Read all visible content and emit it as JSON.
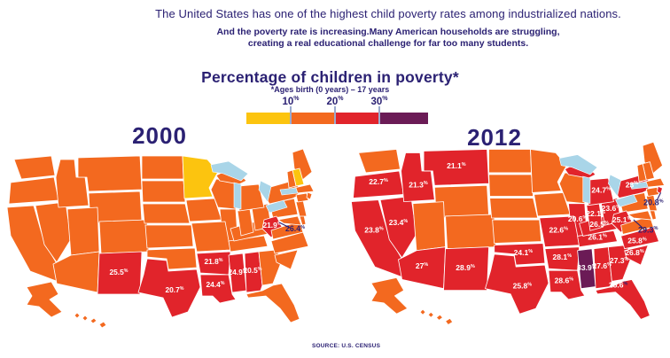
{
  "header": {
    "line1": "The United States has one of the highest child poverty rates among industrialized nations.",
    "line2": "And the poverty rate is increasing.Many American households are struggling,",
    "line3": "creating a real educational challenge for far too many students."
  },
  "legend": {
    "title": "Percentage of children in poverty*",
    "note": "*Ages birth (0 years) – 17 years",
    "ticks": [
      "10",
      "20",
      "30"
    ],
    "unit": "%",
    "colors": {
      "yellow": "#fcc40f",
      "orange": "#f3691f",
      "red": "#e1242b",
      "purple": "#6b1b56"
    },
    "lake_color": "#a9d5e8",
    "border_color": "#ffffff",
    "tick_color": "#9aaace"
  },
  "text_color": "#2b2173",
  "source": "SOURCE: U.S. CENSUS",
  "maps": [
    {
      "year": "2000",
      "default_color": "orange",
      "state_colors": {
        "MN": "yellow",
        "NH": "yellow",
        "NM": "red",
        "TX": "red",
        "AR": "red",
        "LA": "red",
        "MS": "red",
        "AL": "red",
        "WV": "red"
      },
      "labels": [
        {
          "state": "NM",
          "value": "25.5"
        },
        {
          "state": "TX",
          "value": "20.7"
        },
        {
          "state": "AR",
          "value": "21.8"
        },
        {
          "state": "LA",
          "value": "24.4"
        },
        {
          "state": "MS",
          "value": "24.9"
        },
        {
          "state": "AL",
          "value": "20.5"
        },
        {
          "state": "WV",
          "value": "21.9"
        }
      ],
      "callouts": [
        {
          "name": "DC",
          "value": "26.4"
        }
      ]
    },
    {
      "year": "2012",
      "default_color": "orange",
      "state_colors": {
        "OR": "red",
        "MT": "red",
        "ID": "red",
        "NV": "red",
        "CA": "red",
        "AZ": "red",
        "NM": "red",
        "OK": "red",
        "TX": "red",
        "MO": "red",
        "AR": "red",
        "LA": "red",
        "MS": "purple",
        "AL": "red",
        "GA": "red",
        "FL": "red",
        "TN": "red",
        "KY": "red",
        "IL": "red",
        "IN": "red",
        "OH": "red",
        "MI": "red",
        "WV": "red",
        "NY": "red",
        "NC": "red",
        "SC": "red",
        "RI": "red"
      },
      "labels": [
        {
          "state": "OR",
          "value": "22.7"
        },
        {
          "state": "MT",
          "value": "21.1"
        },
        {
          "state": "ID",
          "value": "21.3"
        },
        {
          "state": "NV",
          "value": "23.4"
        },
        {
          "state": "CA",
          "value": "23.8"
        },
        {
          "state": "AZ",
          "value": "27"
        },
        {
          "state": "NM",
          "value": "28.9"
        },
        {
          "state": "OK",
          "value": "24.1"
        },
        {
          "state": "TX",
          "value": "25.8"
        },
        {
          "state": "MO",
          "value": "22.6"
        },
        {
          "state": "AR",
          "value": "28.1"
        },
        {
          "state": "LA",
          "value": "28.6"
        },
        {
          "state": "MS",
          "value": "33.9"
        },
        {
          "state": "AL",
          "value": "27.6"
        },
        {
          "state": "GA",
          "value": "27.3"
        },
        {
          "state": "FL",
          "value": "25.6",
          "pct_navy": true
        },
        {
          "state": "TN",
          "value": "26.1"
        },
        {
          "state": "KY",
          "value": "26.5"
        },
        {
          "state": "IL",
          "value": "20.6"
        },
        {
          "state": "IN",
          "value": "22.1"
        },
        {
          "state": "OH",
          "value": "23.6"
        },
        {
          "state": "MI",
          "value": "24.7"
        },
        {
          "state": "WV",
          "value": "25.1"
        },
        {
          "state": "NY",
          "value": "23"
        },
        {
          "state": "NC",
          "value": "25.8"
        },
        {
          "state": "SC",
          "value": "26.8"
        }
      ],
      "callouts": [
        {
          "name": "RI",
          "value": "20.8"
        },
        {
          "name": "DC",
          "value": "29.3"
        }
      ]
    }
  ],
  "chart_data": {
    "type": "heatmap",
    "subtype": "us-choropleth-pair",
    "title": "Percentage of children in poverty*",
    "subtitle": "*Ages birth (0 years) – 17 years",
    "legend_thresholds_pct": [
      10,
      20,
      30
    ],
    "legend_bins": [
      "yellow <10%",
      "orange 10-20%",
      "red 20-30%",
      "purple >30%"
    ],
    "series": [
      {
        "name": "2000",
        "values": {
          "NM": 25.5,
          "TX": 20.7,
          "AR": 21.8,
          "LA": 24.4,
          "MS": 24.9,
          "AL": 20.5,
          "WV": 21.9,
          "DC": 26.4
        }
      },
      {
        "name": "2012",
        "values": {
          "OR": 22.7,
          "MT": 21.1,
          "ID": 21.3,
          "NV": 23.4,
          "CA": 23.8,
          "AZ": 27,
          "NM": 28.9,
          "OK": 24.1,
          "TX": 25.8,
          "MO": 22.6,
          "AR": 28.1,
          "LA": 28.6,
          "MS": 33.9,
          "AL": 27.6,
          "GA": 27.3,
          "FL": 25.6,
          "TN": 26.1,
          "KY": 26.5,
          "IL": 20.6,
          "IN": 22.1,
          "OH": 23.6,
          "MI": 24.7,
          "WV": 25.1,
          "NY": 23,
          "NC": 25.8,
          "SC": 26.8,
          "RI": 20.8,
          "DC": 29.3
        }
      }
    ],
    "source": "SOURCE: U.S. CENSUS"
  }
}
